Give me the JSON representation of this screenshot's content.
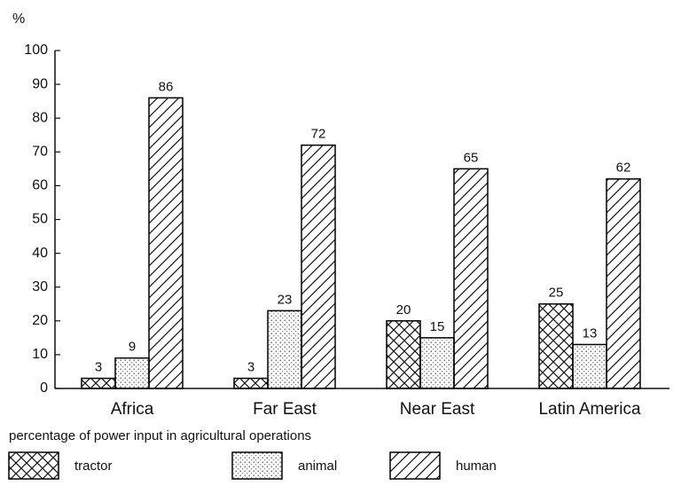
{
  "chart_data": {
    "type": "bar",
    "y_label": "%",
    "x_label": "percentage of power input in agricultural operations",
    "categories": [
      "Africa",
      "Far East",
      "Near East",
      "Latin America"
    ],
    "series": [
      {
        "name": "tractor",
        "color": "#000000",
        "pattern": "crosshatch",
        "values": [
          3,
          3,
          20,
          25
        ]
      },
      {
        "name": "animal",
        "color": "#000000",
        "pattern": "dots",
        "values": [
          9,
          23,
          15,
          13
        ]
      },
      {
        "name": "human",
        "color": "#000000",
        "pattern": "hatch",
        "values": [
          86,
          72,
          65,
          62
        ]
      }
    ],
    "ylim": [
      0,
      100
    ],
    "yticks": [
      0,
      10,
      20,
      30,
      40,
      50,
      60,
      70,
      80,
      90,
      100
    ],
    "grid": false
  }
}
